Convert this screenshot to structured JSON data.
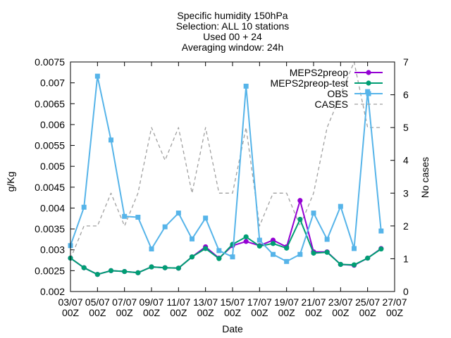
{
  "chart_data": {
    "type": "line",
    "title_lines": [
      "Specific humidity 150hPa",
      "Selection: ALL      10 stations",
      "Used 00 + 24",
      "Averaging window: 24h"
    ],
    "xlabel": "Date",
    "ylabel": "g/Kg",
    "y2label": "No cases",
    "ylim": [
      0.002,
      0.0075
    ],
    "y2lim": [
      0,
      7
    ],
    "yticks": [
      "0.002",
      "0.0025",
      "0.003",
      "0.0035",
      "0.004",
      "0.0045",
      "0.005",
      "0.0055",
      "0.006",
      "0.0065",
      "0.007",
      "0.0075"
    ],
    "y2ticks": [
      "0",
      "1",
      "2",
      "3",
      "4",
      "5",
      "6",
      "7"
    ],
    "xtick_labels": [
      {
        "day": 0,
        "date": "03/07",
        "hour": "00Z"
      },
      {
        "day": 2,
        "date": "05/07",
        "hour": "00Z"
      },
      {
        "day": 4,
        "date": "07/07",
        "hour": "00Z"
      },
      {
        "day": 6,
        "date": "09/07",
        "hour": "00Z"
      },
      {
        "day": 8,
        "date": "11/07",
        "hour": "00Z"
      },
      {
        "day": 10,
        "date": "13/07",
        "hour": "00Z"
      },
      {
        "day": 12,
        "date": "15/07",
        "hour": "00Z"
      },
      {
        "day": 14,
        "date": "17/07",
        "hour": "00Z"
      },
      {
        "day": 16,
        "date": "19/07",
        "hour": "00Z"
      },
      {
        "day": 18,
        "date": "21/07",
        "hour": "00Z"
      },
      {
        "day": 20,
        "date": "23/07",
        "hour": "00Z"
      },
      {
        "day": 22,
        "date": "25/07",
        "hour": "00Z"
      },
      {
        "day": 24,
        "date": "27/07",
        "hour": "00Z"
      }
    ],
    "legend_position": "top-right",
    "series": [
      {
        "name": "MEPS2preop",
        "color": "#9400d3",
        "marker": "circle",
        "axis": "y1",
        "x": [
          0,
          1,
          2,
          3,
          4,
          5,
          6,
          7,
          8,
          9,
          10,
          11,
          12,
          13,
          14,
          15,
          16,
          17,
          18,
          19,
          20,
          21,
          22,
          23
        ],
        "values": [
          0.0028,
          0.00257,
          0.00241,
          0.0025,
          0.00248,
          0.00245,
          0.00259,
          0.00257,
          0.00256,
          0.00283,
          0.00307,
          0.0028,
          0.0031,
          0.0032,
          0.0031,
          0.00323,
          0.00307,
          0.00418,
          0.00295,
          0.00295,
          0.00265,
          0.00263,
          0.0028,
          0.00303
        ]
      },
      {
        "name": "MEPS2preop-test",
        "color": "#009e73",
        "marker": "circle",
        "axis": "y1",
        "x": [
          0,
          1,
          2,
          3,
          4,
          5,
          6,
          7,
          8,
          9,
          10,
          11,
          12,
          13,
          14,
          15,
          16,
          17,
          18,
          19,
          20,
          21,
          22,
          23
        ],
        "values": [
          0.0028,
          0.00257,
          0.00241,
          0.0025,
          0.00248,
          0.00245,
          0.00259,
          0.00257,
          0.00256,
          0.00283,
          0.00303,
          0.00279,
          0.00313,
          0.00331,
          0.00309,
          0.00315,
          0.00304,
          0.00373,
          0.00292,
          0.00294,
          0.00265,
          0.00264,
          0.0028,
          0.00302
        ]
      },
      {
        "name": "OBS",
        "color": "#56b4e9",
        "marker": "square",
        "axis": "y1",
        "x": [
          0,
          1,
          2,
          3,
          4,
          5,
          6,
          7,
          8,
          9,
          10,
          11,
          12,
          13,
          14,
          15,
          16,
          17,
          18,
          19,
          20,
          21,
          22,
          23
        ],
        "values": [
          0.0031,
          0.00402,
          0.00716,
          0.00563,
          0.0038,
          0.00378,
          0.00302,
          0.00355,
          0.00388,
          0.00326,
          0.00376,
          0.00298,
          0.00283,
          0.00692,
          0.00323,
          0.00289,
          0.00272,
          0.00289,
          0.00388,
          0.00325,
          0.00404,
          0.00303,
          0.00679,
          0.00345
        ]
      },
      {
        "name": "CASES",
        "color": "#a0a0a0",
        "marker": "none",
        "dashed": true,
        "axis": "y2",
        "x": [
          0,
          1,
          2,
          3,
          4,
          5,
          6,
          7,
          8,
          9,
          10,
          11,
          12,
          13,
          14,
          15,
          16,
          17,
          18,
          19,
          20,
          21,
          22,
          23
        ],
        "values": [
          1,
          2,
          2,
          3,
          2,
          3,
          5,
          4,
          5,
          3,
          5,
          3,
          3,
          5,
          2,
          3,
          3,
          2,
          3,
          5,
          6,
          7,
          5,
          5
        ]
      }
    ]
  }
}
